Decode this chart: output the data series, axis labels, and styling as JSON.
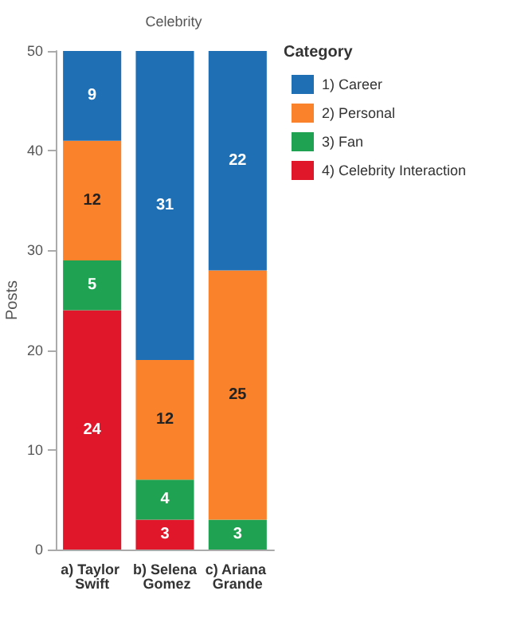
{
  "chart_data": {
    "type": "bar",
    "title": "Celebrity",
    "ylabel": "Posts",
    "legend_title": "Category",
    "categories": [
      "a) Taylor Swift",
      "b) Selena Gomez",
      "c) Ariana Grande"
    ],
    "stacked": true,
    "data_labels": true,
    "grid": false,
    "legend": "right",
    "ylim": [
      0,
      50
    ],
    "yticks": [
      0,
      10,
      20,
      30,
      40,
      50
    ],
    "series": [
      {
        "name": "4) Celebrity Interaction",
        "color": "#e0172b",
        "values": [
          24,
          3,
          null
        ]
      },
      {
        "name": "3) Fan",
        "color": "#1fa352",
        "values": [
          5,
          4,
          3
        ]
      },
      {
        "name": "2) Personal",
        "color": "#f9822b",
        "values": [
          12,
          12,
          25
        ]
      },
      {
        "name": "1) Career",
        "color": "#1f6fb4",
        "values": [
          9,
          31,
          22
        ]
      }
    ]
  }
}
